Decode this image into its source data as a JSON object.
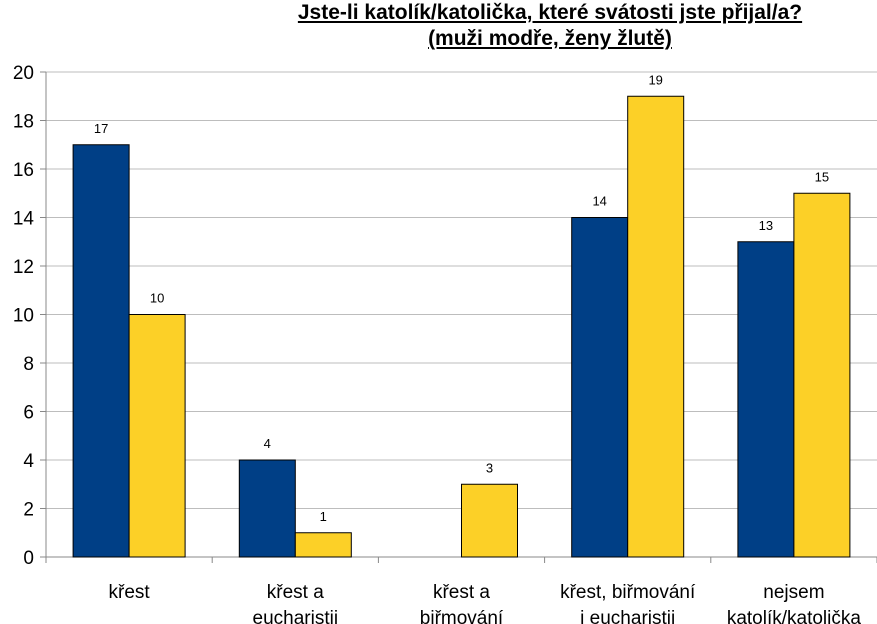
{
  "title_lines": [
    "Jste-li katolík/katolička, které svátosti jste přijal/a?",
    "(muži modře, ženy žlutě)"
  ],
  "colors": {
    "series_men": "#003f86",
    "series_women": "#fcd027",
    "grid": "#bdbdbd",
    "axis": "#888888"
  },
  "chart_data": {
    "type": "bar",
    "title": "Jste-li katolík/katolička, které svátosti jste přijal/a? (muži modře, ženy žlutě)",
    "categories": [
      [
        "křest"
      ],
      [
        "křest a",
        "eucharistii"
      ],
      [
        "křest a",
        "biřmování"
      ],
      [
        "křest, biřmování",
        "i eucharistii"
      ],
      [
        "nejsem",
        "katolík/katolička"
      ]
    ],
    "series": [
      {
        "values": [
          17,
          4,
          0,
          14,
          13
        ],
        "labels": [
          "17",
          "4",
          "",
          "14",
          "13"
        ]
      },
      {
        "values": [
          10,
          1,
          3,
          19,
          15
        ],
        "labels": [
          "10",
          "1",
          "3",
          "19",
          "15"
        ]
      }
    ],
    "ylim": [
      0,
      20
    ],
    "yticks": [
      0,
      2,
      4,
      6,
      8,
      10,
      12,
      14,
      16,
      18,
      20
    ],
    "grid": true,
    "legend": "none"
  }
}
